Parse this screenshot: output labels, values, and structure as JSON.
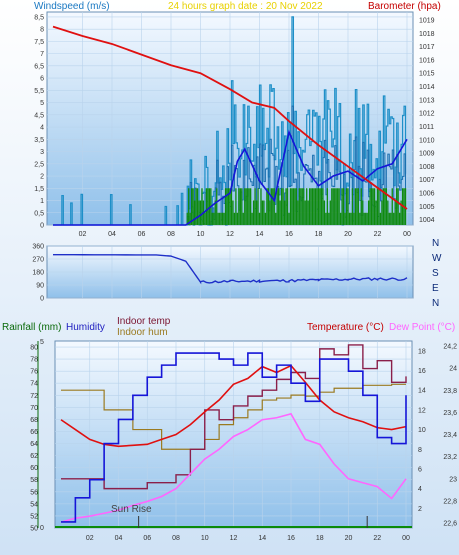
{
  "chart_data": [
    {
      "type": "line",
      "subtitle": "24 hours graph date : 20 Nov 2022",
      "left_axis_label": "Windspeed (m/s)",
      "right_axis_label": "Barometer (hpa)",
      "colors": {
        "wind": "#1e8fc8",
        "gust": "#1a6fb0",
        "avg": "#0d1fd0",
        "barometer": "#e01010",
        "direction": "#008800"
      },
      "x_ticks": [
        "02",
        "04",
        "06",
        "08",
        "10",
        "12",
        "14",
        "16",
        "18",
        "20",
        "22",
        "00"
      ],
      "left_ticks": [
        "0",
        "0,5",
        "1",
        "1,5",
        "2",
        "2,5",
        "3",
        "3,5",
        "4",
        "4,5",
        "5",
        "5,5",
        "6",
        "6,5",
        "7",
        "7,5",
        "8",
        "8,5"
      ],
      "right_ticks": [
        "1004",
        "1005",
        "1006",
        "1007",
        "1008",
        "1009",
        "1010",
        "1011",
        "1012",
        "1013",
        "1014",
        "1015",
        "1016",
        "1017",
        "1018",
        "1019"
      ],
      "ylim_left": [
        0,
        8.7
      ],
      "ylim_right": [
        1003.6,
        1019.6
      ],
      "barometer": {
        "x": [
          0,
          2,
          4,
          6,
          8,
          10,
          12,
          13.5,
          15,
          16,
          18,
          20,
          22,
          24
        ],
        "y": [
          1018.5,
          1017.8,
          1017.2,
          1016.4,
          1015.6,
          1015,
          1013.8,
          1012.8,
          1012.4,
          1011.4,
          1009.6,
          1008,
          1006.4,
          1004.8
        ]
      },
      "wind_avg": {
        "x": [
          0,
          9,
          10,
          11,
          12,
          12.5,
          13,
          14,
          15,
          16,
          17,
          18,
          19,
          20,
          21,
          22,
          23,
          24
        ],
        "y": [
          0,
          0,
          0.4,
          0.9,
          1.3,
          2.6,
          3.1,
          1.8,
          1,
          3.8,
          2.4,
          1.6,
          2,
          2.2,
          1.8,
          2.3,
          2.5,
          3.5
        ]
      }
    },
    {
      "type": "line",
      "right_axis_letters": [
        "N",
        "W",
        "S",
        "E",
        "N"
      ],
      "y_ticks": [
        "0",
        "90",
        "180",
        "270",
        "360"
      ],
      "ylim": [
        0,
        360
      ],
      "series": [
        {
          "values_x": [
            0,
            7,
            8,
            9,
            10,
            12,
            14,
            16,
            18,
            20,
            22,
            24
          ],
          "values_y": [
            300,
            298,
            290,
            255,
            110,
            115,
            118,
            120,
            125,
            130,
            132,
            132
          ]
        }
      ],
      "x_ticks": [
        "02",
        "04",
        "06",
        "08",
        "10",
        "12",
        "14",
        "16",
        "18",
        "20",
        "22",
        "00"
      ]
    },
    {
      "type": "line",
      "labels": {
        "rainfall": "Rainfall (mm)",
        "humidity": "Humidity",
        "indoor_temp": "Indoor temp",
        "indoor_hum": "Indoor hum",
        "temperature": "Temperature (°C)",
        "dew_point": "Dew Point (°C)",
        "sun_rise": "Sun Rise"
      },
      "left_ticks": [
        "50",
        "52",
        "54",
        "56",
        "58",
        "60",
        "62",
        "64",
        "66",
        "68",
        "70",
        "72",
        "74",
        "76",
        "78",
        "80"
      ],
      "inner_right_ticks": [
        "2",
        "4",
        "6",
        "8",
        "10",
        "12",
        "14",
        "16",
        "18"
      ],
      "far_right_ticks": [
        "22,6",
        "22,8",
        "23",
        "23,2",
        "23,4",
        "23,6",
        "23,8",
        "24",
        "24,2"
      ],
      "rain_ticks": [
        "0",
        "5"
      ],
      "ylim_humidity": [
        50,
        81
      ],
      "ylim_temp": [
        0,
        19
      ],
      "x_ticks": [
        "02",
        "04",
        "06",
        "08",
        "10",
        "12",
        "14",
        "16",
        "18",
        "20",
        "22",
        "00"
      ],
      "humidity": {
        "x": [
          0,
          1,
          2,
          3,
          4,
          5,
          6,
          7,
          8,
          9,
          10,
          11,
          12,
          13,
          14,
          15,
          16,
          17,
          18,
          19,
          20,
          21,
          22,
          23,
          24
        ],
        "y": [
          51,
          55,
          58,
          64,
          68,
          72,
          75,
          77,
          79,
          79,
          79,
          78,
          77,
          79,
          75,
          77,
          74,
          71,
          78,
          78,
          76,
          72,
          65,
          64,
          72
        ]
      },
      "temperature": {
        "x": [
          0,
          1,
          2,
          3,
          4,
          5,
          6,
          7,
          8,
          9,
          10,
          11,
          12,
          13,
          14,
          15,
          16,
          17,
          18,
          19,
          20,
          21,
          22,
          23,
          24
        ],
        "y": [
          11,
          10,
          9,
          8.5,
          8.3,
          8.4,
          8.5,
          9,
          9.5,
          10.5,
          11.8,
          13,
          14.6,
          15.2,
          16.4,
          15.8,
          16.5,
          14.8,
          13,
          11.8,
          11.2,
          10.8,
          10.2,
          10,
          10.3
        ]
      },
      "dew_point": {
        "x": [
          0,
          1,
          2,
          3,
          4,
          5,
          6,
          7,
          8,
          9,
          10,
          11,
          12,
          13,
          14,
          15,
          16,
          17,
          18,
          19,
          20,
          21,
          22,
          23,
          24
        ],
        "y": [
          0.6,
          1,
          1.2,
          1.5,
          1.8,
          2.3,
          2.7,
          3.2,
          4,
          5.5,
          7,
          8,
          9.3,
          10,
          11,
          11.2,
          11.6,
          9,
          8.5,
          6.5,
          5,
          4.6,
          4.2,
          3,
          5
        ]
      },
      "indoor_temp": {
        "x": [
          0,
          2,
          3,
          5,
          6,
          8,
          9,
          10,
          11,
          12,
          13,
          14,
          15,
          16,
          17,
          18,
          19,
          20,
          21,
          22,
          23,
          24
        ],
        "y": [
          5,
          5,
          4,
          4,
          4.6,
          5.4,
          8,
          12,
          11,
          12.4,
          13.4,
          14,
          15.1,
          15.8,
          15.2,
          18.2,
          17.6,
          18.6,
          16.2,
          17,
          14.8,
          15.4
        ]
      },
      "indoor_hum": {
        "x": [
          0,
          3,
          5,
          7,
          9,
          10,
          11,
          12,
          13,
          14,
          15,
          16,
          17,
          18,
          19,
          20,
          21,
          22,
          23,
          24
        ],
        "y": [
          14,
          12,
          10,
          8,
          8,
          9,
          10.5,
          11.2,
          12,
          13,
          13.2,
          13.5,
          13.4,
          13.8,
          14.2,
          14.2,
          14.5,
          14.5,
          14.6,
          14.6
        ]
      }
    }
  ]
}
